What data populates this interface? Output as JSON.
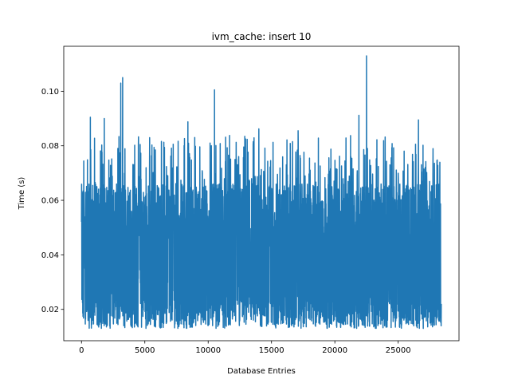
{
  "chart_data": {
    "type": "line",
    "title": "ivm_cache: insert 10",
    "xlabel": "Database Entries",
    "ylabel": "Time (s)",
    "xlim": [
      -1400,
      29800
    ],
    "ylim": [
      0.0085,
      0.1165
    ],
    "xticks": [
      0,
      5000,
      10000,
      15000,
      20000,
      25000
    ],
    "xtick_labels": [
      "0",
      "5000",
      "10000",
      "15000",
      "20000",
      "25000"
    ],
    "yticks": [
      0.02,
      0.04,
      0.06,
      0.08,
      0.1
    ],
    "ytick_labels": [
      "0.02",
      "0.04",
      "0.06",
      "0.08",
      "0.10"
    ],
    "grid": false,
    "series": [
      {
        "color": "#1f77b4",
        "x_start": 0,
        "x_end": 28400,
        "n_points": 2841,
        "baseline_mean": 0.056,
        "min": 0.0115,
        "max": 0.113,
        "peaks": [
          {
            "x": 3100,
            "y": 0.103
          },
          {
            "x": 3250,
            "y": 0.105
          },
          {
            "x": 10500,
            "y": 0.1005
          },
          {
            "x": 22500,
            "y": 0.113
          },
          {
            "x": 700,
            "y": 0.0905
          },
          {
            "x": 1800,
            "y": 0.09
          },
          {
            "x": 21900,
            "y": 0.0912
          },
          {
            "x": 26600,
            "y": 0.0895
          },
          {
            "x": 8400,
            "y": 0.0888
          },
          {
            "x": 14000,
            "y": 0.0862
          },
          {
            "x": 17100,
            "y": 0.0855
          }
        ]
      }
    ]
  }
}
